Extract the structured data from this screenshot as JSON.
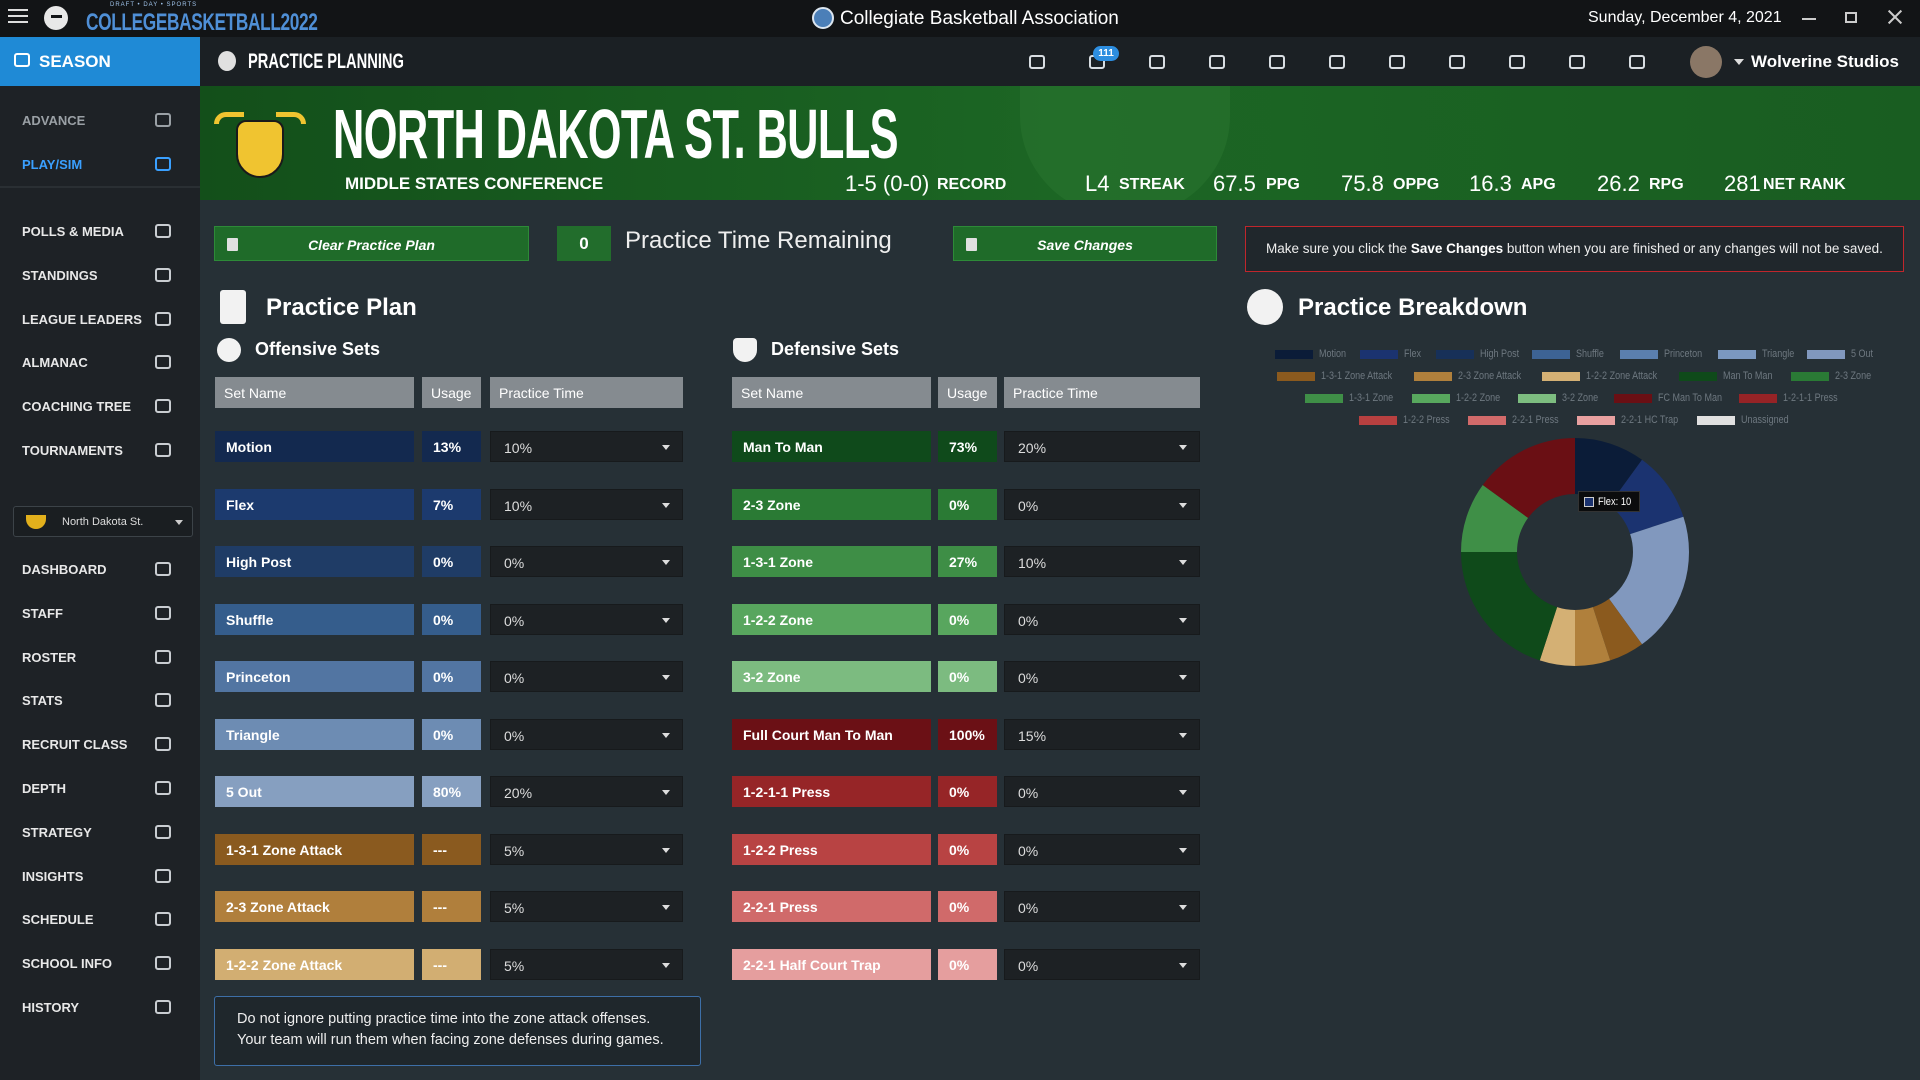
{
  "titlebar": {
    "brand_top": "DRAFT • DAY • SPORTS",
    "brand": "COLLEGEBASKETBALL2022",
    "title": "Collegiate Basketball Association",
    "date": "Sunday, December 4, 2021"
  },
  "nav": {
    "section": "SEASON",
    "page": "PRACTICE PLANNING",
    "mail_count": "111",
    "user": "Wolverine Studios"
  },
  "sidebar": {
    "top": [
      "ADVANCE",
      "PLAY/SIM"
    ],
    "league": [
      "POLLS & MEDIA",
      "STANDINGS",
      "LEAGUE LEADERS",
      "ALMANAC",
      "COACHING TREE",
      "TOURNAMENTS"
    ],
    "team_select": "North Dakota St.",
    "team": [
      "DASHBOARD",
      "STAFF",
      "ROSTER",
      "STATS",
      "RECRUIT CLASS",
      "DEPTH",
      "STRATEGY",
      "INSIGHTS",
      "SCHEDULE",
      "SCHOOL INFO",
      "HISTORY"
    ]
  },
  "banner": {
    "team": "NORTH DAKOTA ST. BULLS",
    "conference": "MIDDLE STATES CONFERENCE",
    "stats": [
      {
        "value": "1-5 (0-0)",
        "label": "RECORD"
      },
      {
        "value": "L4",
        "label": "STREAK"
      },
      {
        "value": 67.5,
        "label": "PPG"
      },
      {
        "value": 75.8,
        "label": "OPPG"
      },
      {
        "value": 16.3,
        "label": "APG"
      },
      {
        "value": 26.2,
        "label": "RPG"
      },
      {
        "value": 281,
        "label": "NET RANK"
      }
    ]
  },
  "toolbar": {
    "clear": "Clear Practice Plan",
    "remaining": 0,
    "remaining_label": "Practice Time Remaining",
    "save": "Save Changes",
    "notice_pre": "Make sure you click the",
    "notice_bold": "Save Changes",
    "notice_post": "button when you are finished or any changes will not be saved."
  },
  "plan": {
    "title": "Practice Plan",
    "offensive": {
      "title": "Offensive Sets",
      "headers": [
        "Set Name",
        "Usage",
        "Practice Time"
      ],
      "rows": [
        {
          "name": "Motion",
          "usage": "13%",
          "time": "10%",
          "color": "#13294f"
        },
        {
          "name": "Flex",
          "usage": "7%",
          "time": "10%",
          "color": "#1c3a6e"
        },
        {
          "name": "High Post",
          "usage": "0%",
          "time": "0%",
          "color": "#1f3c66"
        },
        {
          "name": "Shuffle",
          "usage": "0%",
          "time": "0%",
          "color": "#355d8c"
        },
        {
          "name": "Princeton",
          "usage": "0%",
          "time": "0%",
          "color": "#5275a2"
        },
        {
          "name": "Triangle",
          "usage": "0%",
          "time": "0%",
          "color": "#6d8cb3"
        },
        {
          "name": "5 Out",
          "usage": "80%",
          "time": "20%",
          "color": "#869fc0"
        },
        {
          "name": "1-3-1 Zone Attack",
          "usage": "---",
          "time": "5%",
          "color": "#8a5a1f"
        },
        {
          "name": "2-3 Zone Attack",
          "usage": "---",
          "time": "5%",
          "color": "#b07f3c"
        },
        {
          "name": "1-2-2 Zone Attack",
          "usage": "---",
          "time": "5%",
          "color": "#d2ae72"
        }
      ]
    },
    "defensive": {
      "title": "Defensive Sets",
      "headers": [
        "Set Name",
        "Usage",
        "Practice Time"
      ],
      "rows": [
        {
          "name": "Man To Man",
          "usage": "73%",
          "time": "20%",
          "color": "#0f4a1b"
        },
        {
          "name": "2-3 Zone",
          "usage": "0%",
          "time": "0%",
          "color": "#2a7a34"
        },
        {
          "name": "1-3-1 Zone",
          "usage": "27%",
          "time": "10%",
          "color": "#3e8e46"
        },
        {
          "name": "1-2-2 Zone",
          "usage": "0%",
          "time": "0%",
          "color": "#58a65e"
        },
        {
          "name": "3-2 Zone",
          "usage": "0%",
          "time": "0%",
          "color": "#7cbb80"
        },
        {
          "name": "Full Court Man To Man",
          "usage": "100%",
          "time": "15%",
          "color": "#6b1015"
        },
        {
          "name": "1-2-1-1 Press",
          "usage": "0%",
          "time": "0%",
          "color": "#962527"
        },
        {
          "name": "1-2-2 Press",
          "usage": "0%",
          "time": "0%",
          "color": "#b84343"
        },
        {
          "name": "2-2-1 Press",
          "usage": "0%",
          "time": "0%",
          "color": "#d06a6a"
        },
        {
          "name": "2-2-1 Half Court Trap",
          "usage": "0%",
          "time": "0%",
          "color": "#e59e9e"
        }
      ]
    },
    "note": [
      "Do not ignore putting practice time into the zone attack offenses.",
      "Your team will run them when facing zone defenses during games."
    ]
  },
  "chart_data": {
    "type": "pie",
    "title": "Practice Breakdown",
    "categories": [
      "Motion",
      "Flex",
      "High Post",
      "Shuffle",
      "Princeton",
      "Triangle",
      "5 Out",
      "1-3-1 Zone Attack",
      "2-3 Zone Attack",
      "1-2-2 Zone Attack",
      "Man To Man",
      "2-3 Zone",
      "1-3-1 Zone",
      "1-2-2 Zone",
      "3-2 Zone",
      "FC Man To Man",
      "1-2-1-1 Press",
      "1-2-2 Press",
      "2-2-1 Press",
      "2-2-1 HC Trap",
      "Unassigned"
    ],
    "values": [
      10,
      10,
      0,
      0,
      0,
      0,
      20,
      5,
      5,
      5,
      20,
      0,
      10,
      0,
      0,
      15,
      0,
      0,
      0,
      0,
      0
    ],
    "colors": [
      "#0b1c38",
      "#1b3370",
      "#173058",
      "#3d6394",
      "#5b7fae",
      "#7b98c0",
      "#8198be",
      "#8b5a1e",
      "#b0803c",
      "#d4b074",
      "#0f4a1a",
      "#2a7a35",
      "#3f8f47",
      "#58a85e",
      "#7dbd80",
      "#6a0f14",
      "#962326",
      "#b84040",
      "#d26a6a",
      "#e8a0a0",
      "#e0e0e0"
    ],
    "tooltip": "Flex: 10"
  }
}
